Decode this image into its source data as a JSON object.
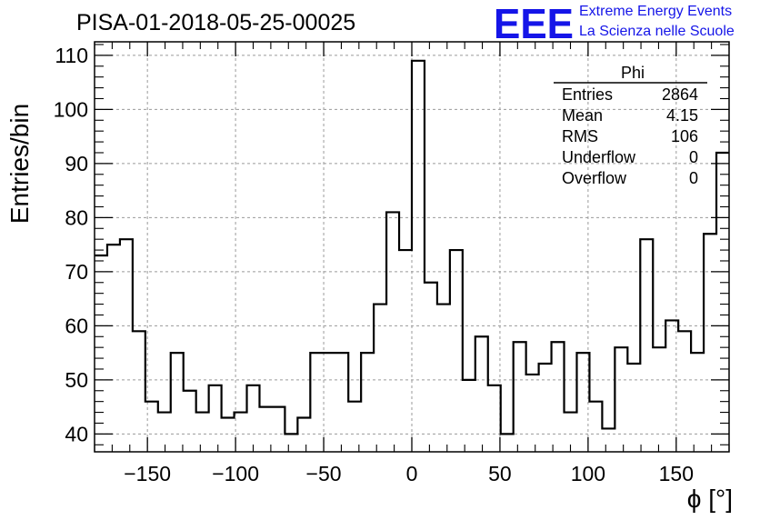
{
  "chart_data": {
    "type": "histogram",
    "title": "PISA-01-2018-05-25-00025",
    "xlabel": "ϕ [°]",
    "ylabel": "Entries/bin",
    "xlim": [
      -180,
      180
    ],
    "ylim": [
      36.7,
      112.5
    ],
    "bin_width": 7.2,
    "values": [
      73,
      75,
      76,
      59,
      46,
      44,
      55,
      48,
      44,
      49,
      43,
      44,
      49,
      45,
      45,
      40,
      43,
      55,
      55,
      55,
      46,
      55,
      64,
      81,
      74,
      109,
      68,
      64,
      74,
      50,
      58,
      49,
      40,
      57,
      51,
      53,
      57,
      44,
      55,
      46,
      41,
      56,
      53,
      76,
      56,
      61,
      59,
      55,
      77,
      92
    ],
    "x_ticks": [
      -150,
      -100,
      -50,
      0,
      50,
      100,
      150
    ],
    "y_ticks": [
      40,
      50,
      60,
      70,
      80,
      90,
      100,
      110
    ],
    "grid": true,
    "stats_box": {
      "name": "Phi",
      "rows": [
        {
          "label": "Entries",
          "value": "2864"
        },
        {
          "label": "Mean",
          "value": "4.15"
        },
        {
          "label": "RMS",
          "value": "106"
        },
        {
          "label": "Underflow",
          "value": "0"
        },
        {
          "label": "Overflow",
          "value": "0"
        }
      ]
    },
    "colors": {
      "line": "#000000",
      "grid": "#9a9a9a",
      "logo": "#1515e8"
    }
  },
  "logo": {
    "mark": "EEE",
    "line1": "Extreme Energy Events",
    "line2": "La Scienza nelle Scuole"
  }
}
